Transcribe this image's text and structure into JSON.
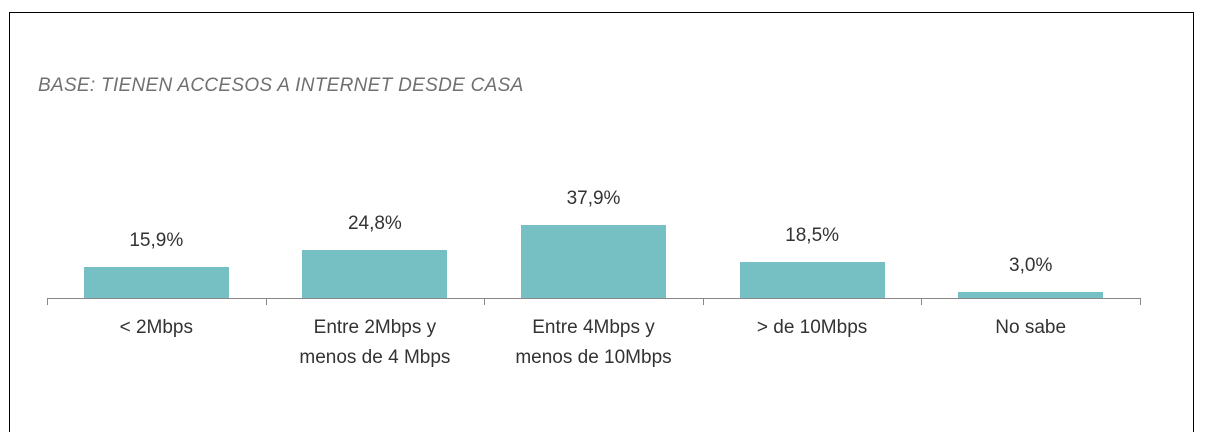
{
  "chart_data": {
    "type": "bar",
    "title": "BASE: TIENEN ACCESOS A INTERNET DESDE CASA",
    "categories": [
      "< 2Mbps",
      "Entre 2Mbps y menos de 4 Mbps",
      "Entre 4Mbps y menos de 10Mbps",
      "> de 10Mbps",
      "No sabe"
    ],
    "values": [
      15.9,
      24.8,
      37.9,
      18.5,
      3.0
    ],
    "value_labels": [
      "15,9%",
      "24,8%",
      "37,9%",
      "18,5%",
      "3,0%"
    ],
    "color": "#76c0c4"
  }
}
